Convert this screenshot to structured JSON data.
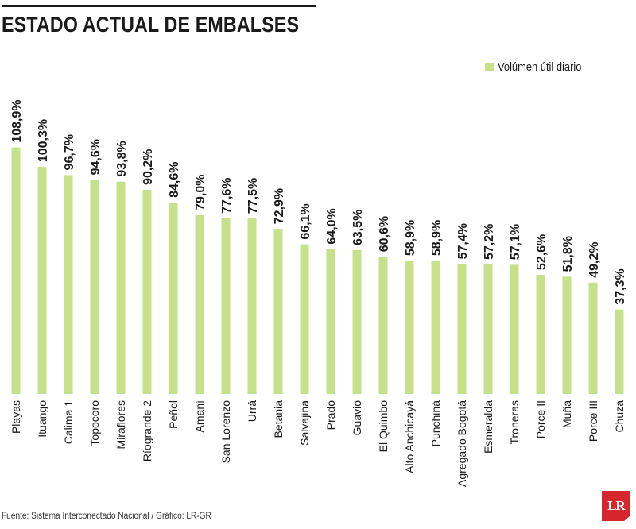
{
  "title": "ESTADO ACTUAL DE EMBALSES",
  "source": "Fuente: Sistema Interconectado Nacional / Gráfico: LR-GR",
  "logo_text": "LR",
  "colors": {
    "bar": "#c7e08a",
    "text": "#1a1a1a",
    "logo": "#d4262c"
  },
  "chart_data": {
    "type": "bar",
    "title": "ESTADO ACTUAL DE EMBALSES",
    "legend": {
      "position": "top-right",
      "entries": [
        "Volúmen útil diario"
      ]
    },
    "grid": false,
    "ylim": [
      0,
      125
    ],
    "categories": [
      "Playas",
      "Ituango",
      "Calima 1",
      "Topocoro",
      "Miraflores",
      "Ríogrande 2",
      "Peñol",
      "Amaní",
      "San Lorenzo",
      "Urrá",
      "Betania",
      "Salvajina",
      "Prado",
      "Guavio",
      "El Quimbo",
      "Alto Anchicayá",
      "Punchiná",
      "Agregado Bogotá",
      "Esmeralda",
      "Troneras",
      "Porce II",
      "Muña",
      "Porce III",
      "Chuza"
    ],
    "series": [
      {
        "name": "Volúmen útil diario",
        "values": [
          108.9,
          100.3,
          96.7,
          94.6,
          93.8,
          90.2,
          84.6,
          79.0,
          77.6,
          77.5,
          72.9,
          66.1,
          64.0,
          63.5,
          60.6,
          58.9,
          58.9,
          57.4,
          57.2,
          57.1,
          52.6,
          51.8,
          49.2,
          37.3
        ]
      }
    ],
    "data_labels": [
      "108,9%",
      "100,3%",
      "96,7%",
      "94,6%",
      "93,8%",
      "90,2%",
      "84,6%",
      "79,0%",
      "77,6%",
      "77,5%",
      "72,9%",
      "66,1%",
      "64,0%",
      "63,5%",
      "60,6%",
      "58,9%",
      "58,9%",
      "57,4%",
      "57,2%",
      "57,1%",
      "52,6%",
      "51,8%",
      "49,2%",
      "37,3%"
    ]
  }
}
